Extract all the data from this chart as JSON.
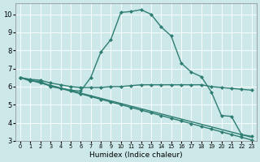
{
  "xlabel": "Humidex (Indice chaleur)",
  "bg_color": "#cce8e8",
  "line_color": "#2e7d72",
  "grid_color": "#ffffff",
  "xlim": [
    -0.5,
    23.5
  ],
  "ylim": [
    3,
    10.6
  ],
  "yticks": [
    3,
    4,
    5,
    6,
    7,
    8,
    9,
    10
  ],
  "line1_x": [
    0,
    1,
    2,
    3,
    4,
    5,
    6,
    7,
    8,
    9,
    10,
    11,
    12,
    13,
    14,
    15,
    16,
    17,
    18,
    19,
    20,
    21,
    22,
    23
  ],
  "line1_y": [
    6.5,
    6.3,
    6.3,
    6.0,
    5.9,
    5.8,
    5.75,
    6.5,
    7.9,
    8.6,
    10.1,
    10.15,
    10.25,
    10.0,
    9.3,
    8.8,
    7.3,
    6.8,
    6.55,
    5.7,
    4.4,
    4.35,
    3.35,
    3.25
  ],
  "line2_x": [
    0,
    1,
    2,
    3,
    4,
    5,
    6,
    7,
    8,
    9,
    10,
    11,
    12,
    13,
    14,
    15,
    16,
    17,
    18,
    19,
    20,
    21,
    22,
    23
  ],
  "line2_y": [
    6.5,
    6.4,
    6.35,
    6.2,
    6.1,
    6.0,
    5.95,
    5.95,
    5.95,
    6.0,
    6.0,
    6.05,
    6.1,
    6.1,
    6.1,
    6.1,
    6.1,
    6.1,
    6.1,
    6.0,
    5.95,
    5.9,
    5.85,
    5.8
  ],
  "line3_x": [
    0,
    23
  ],
  "line3_y": [
    6.5,
    3.2
  ],
  "line4_x": [
    0,
    1,
    2,
    3,
    4,
    5,
    6,
    7,
    8,
    9,
    10,
    11,
    12,
    13,
    14,
    15,
    16,
    17,
    18,
    19,
    20,
    21,
    22,
    23
  ],
  "line4_y": [
    6.5,
    6.35,
    6.2,
    6.05,
    5.9,
    5.75,
    5.6,
    5.45,
    5.3,
    5.15,
    5.0,
    4.85,
    4.7,
    4.55,
    4.4,
    4.25,
    4.1,
    3.95,
    3.8,
    3.65,
    3.5,
    3.35,
    3.2,
    3.05
  ]
}
